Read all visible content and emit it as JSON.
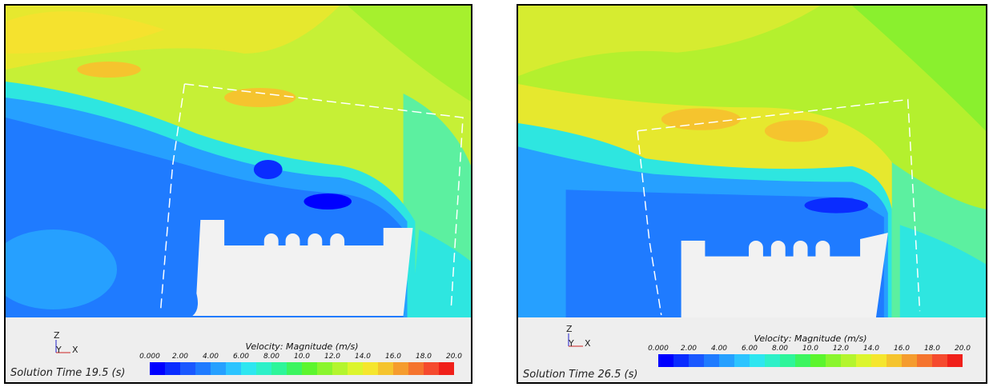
{
  "panels": [
    {
      "solution_time_label": "Solution Time 19.5 (s)",
      "legend_title": "Velocity: Magnitude (m/s)",
      "ticks": [
        "0.000",
        "2.00",
        "4.00",
        "6.00",
        "8.00",
        "10.0",
        "12.0",
        "14.0",
        "16.0",
        "18.0",
        "20.0"
      ]
    },
    {
      "solution_time_label": "Solution Time 26.5 (s)",
      "legend_title": "Velocity: Magnitude (m/s)",
      "ticks": [
        "0.000",
        "2.00",
        "4.00",
        "6.00",
        "8.00",
        "10.0",
        "12.0",
        "14.0",
        "16.0",
        "18.0",
        "20.0"
      ]
    }
  ],
  "axis_labels": {
    "z": "Z",
    "y": "Y",
    "x": "X"
  },
  "colors": {
    "scale": [
      "#0000ff",
      "#0a2cff",
      "#1a58ff",
      "#1f7bff",
      "#26a0ff",
      "#2cc4ff",
      "#2ee6f0",
      "#2ef0c8",
      "#2ef59a",
      "#3cf560",
      "#5cf52e",
      "#8af52e",
      "#b4f52e",
      "#dcf52e",
      "#f5e62e",
      "#f5c42e",
      "#f59c2e",
      "#f5742e",
      "#f54a2e",
      "#f0201a"
    ],
    "body": "#f2f2f2",
    "floor": "#eeeeee"
  }
}
